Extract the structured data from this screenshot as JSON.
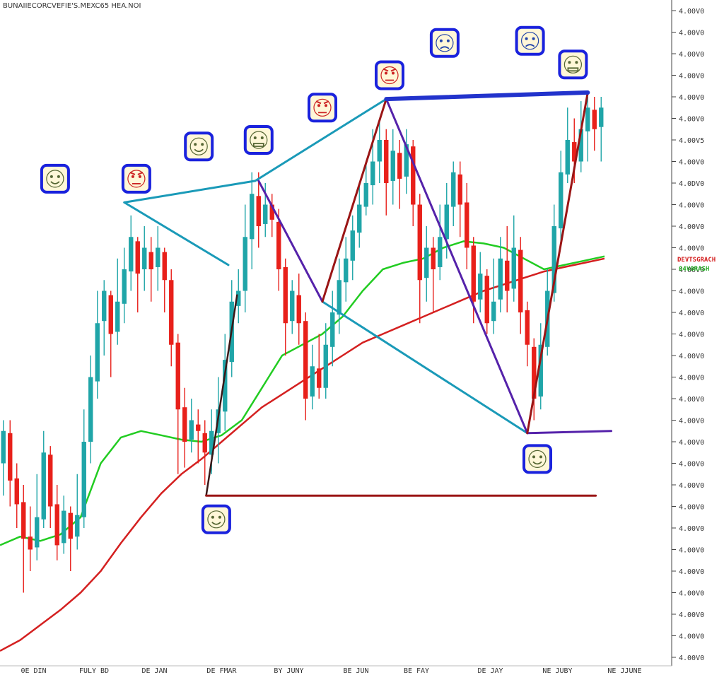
{
  "chart_data": {
    "type": "line",
    "subtype": "candlestick",
    "title": "BUNAIIECORCVEFIE'S.MEXC65 HEA.NOI",
    "xlabel": "",
    "ylabel": "",
    "x_ticks": [
      "0E DIN",
      "FULY BD",
      "DE JAN",
      "DE FMAR",
      "BY JUNY",
      "BE JUN",
      "BE FAY",
      "DE JAY",
      "NE JUBY",
      "NE JJUNE"
    ],
    "y_ticks": [
      "4.00V0",
      "4.00V0",
      "4.00V0",
      "4.00V0",
      "4.00V0",
      "4.00V0",
      "4.00V5",
      "4.00V0",
      "4.0DV0",
      "4.00V0",
      "4.00V0",
      "4.00V0",
      "4.00V0",
      "4.00V0",
      "4.00V0",
      "4.00V0",
      "4.00V0",
      "4.00V0",
      "4.00V0",
      "4.00V0",
      "4.00V0",
      "4.00V0",
      "4.00V0",
      "4.00V0",
      "4.00V0",
      "4.00V0",
      "4.00V0",
      "4.00V0",
      "4.00V0",
      "4.00V0",
      "4.00V0"
    ],
    "ylim": [
      0,
      30
    ],
    "xlim": [
      0,
      100
    ],
    "grid": false,
    "price_tags": [
      "DEVTSGRACH",
      "04V0RASH"
    ],
    "colors": {
      "up": "#1fa5a8",
      "down": "#e8201a",
      "ma_fast": "#22cc22",
      "ma_slow": "#d42020",
      "pattern_cyan": "#1a9ab8",
      "pattern_purple": "#5522aa",
      "pattern_darkred": "#9a1515",
      "pattern_blue": "#2233cc",
      "icon_border": "#1a22dd",
      "icon_fill": "#fff7d8"
    },
    "candles": [
      {
        "x": 0.5,
        "open": 9.0,
        "close": 10.5,
        "high": 11.0,
        "low": 7.5
      },
      {
        "x": 1.5,
        "open": 10.4,
        "close": 8.2,
        "high": 11.0,
        "low": 7.0
      },
      {
        "x": 2.5,
        "open": 8.3,
        "close": 7.1,
        "high": 9.0,
        "low": 6.0
      },
      {
        "x": 3.5,
        "open": 7.2,
        "close": 5.5,
        "high": 8.0,
        "low": 3.0
      },
      {
        "x": 4.5,
        "open": 5.6,
        "close": 5.0,
        "high": 7.0,
        "low": 4.0
      },
      {
        "x": 5.5,
        "open": 5.1,
        "close": 6.5,
        "high": 8.5,
        "low": 4.5
      },
      {
        "x": 6.5,
        "open": 6.4,
        "close": 9.5,
        "high": 10.5,
        "low": 6.0
      },
      {
        "x": 7.5,
        "open": 9.4,
        "close": 7.0,
        "high": 9.8,
        "low": 6.0
      },
      {
        "x": 8.5,
        "open": 7.1,
        "close": 5.2,
        "high": 8.0,
        "low": 4.5
      },
      {
        "x": 9.5,
        "open": 5.3,
        "close": 6.8,
        "high": 7.5,
        "low": 4.8
      },
      {
        "x": 10.5,
        "open": 6.7,
        "close": 5.5,
        "high": 7.0,
        "low": 4.0
      },
      {
        "x": 11.5,
        "open": 5.6,
        "close": 6.6,
        "high": 8.5,
        "low": 5.0
      },
      {
        "x": 12.5,
        "open": 6.5,
        "close": 10.0,
        "high": 11.5,
        "low": 6.0
      },
      {
        "x": 13.5,
        "open": 10.0,
        "close": 13.0,
        "high": 14.0,
        "low": 9.0
      },
      {
        "x": 14.5,
        "open": 12.8,
        "close": 15.5,
        "high": 17.0,
        "low": 12.0
      },
      {
        "x": 15.5,
        "open": 15.6,
        "close": 17.0,
        "high": 17.5,
        "low": 14.0
      },
      {
        "x": 16.5,
        "open": 16.8,
        "close": 15.0,
        "high": 17.0,
        "low": 13.0
      },
      {
        "x": 17.5,
        "open": 15.1,
        "close": 16.5,
        "high": 18.5,
        "low": 14.5
      },
      {
        "x": 18.5,
        "open": 16.4,
        "close": 18.0,
        "high": 19.0,
        "low": 15.5
      },
      {
        "x": 19.5,
        "open": 17.9,
        "close": 19.5,
        "high": 20.5,
        "low": 17.0
      },
      {
        "x": 20.5,
        "open": 19.3,
        "close": 17.8,
        "high": 19.5,
        "low": 16.0
      },
      {
        "x": 21.5,
        "open": 18.0,
        "close": 19.0,
        "high": 20.0,
        "low": 17.0
      },
      {
        "x": 22.5,
        "open": 18.8,
        "close": 18.0,
        "high": 19.5,
        "low": 16.5
      },
      {
        "x": 23.5,
        "open": 18.1,
        "close": 19.0,
        "high": 20.0,
        "low": 17.0
      },
      {
        "x": 24.5,
        "open": 18.8,
        "close": 17.5,
        "high": 19.0,
        "low": 16.0
      },
      {
        "x": 25.5,
        "open": 17.5,
        "close": 14.5,
        "high": 18.0,
        "low": 13.5
      },
      {
        "x": 26.5,
        "open": 14.6,
        "close": 11.5,
        "high": 15.0,
        "low": 8.5
      },
      {
        "x": 27.5,
        "open": 11.6,
        "close": 10.0,
        "high": 12.5,
        "low": 8.8
      },
      {
        "x": 28.5,
        "open": 10.1,
        "close": 11.0,
        "high": 12.0,
        "low": 9.5
      },
      {
        "x": 29.5,
        "open": 10.8,
        "close": 10.5,
        "high": 11.5,
        "low": 9.0
      },
      {
        "x": 30.5,
        "open": 10.4,
        "close": 9.5,
        "high": 11.0,
        "low": 8.0
      },
      {
        "x": 31.5,
        "open": 9.4,
        "close": 10.5,
        "high": 11.5,
        "low": 8.5
      },
      {
        "x": 32.5,
        "open": 10.4,
        "close": 11.5,
        "high": 13.0,
        "low": 9.0
      },
      {
        "x": 33.5,
        "open": 11.4,
        "close": 13.8,
        "high": 15.0,
        "low": 10.5
      },
      {
        "x": 34.5,
        "open": 13.7,
        "close": 16.5,
        "high": 17.5,
        "low": 13.0
      },
      {
        "x": 35.5,
        "open": 16.3,
        "close": 17.0,
        "high": 18.0,
        "low": 15.5
      },
      {
        "x": 36.5,
        "open": 17.0,
        "close": 19.5,
        "high": 21.0,
        "low": 16.0
      },
      {
        "x": 37.5,
        "open": 19.4,
        "close": 21.5,
        "high": 22.5,
        "low": 18.0
      },
      {
        "x": 38.5,
        "open": 21.4,
        "close": 20.0,
        "high": 22.5,
        "low": 19.0
      },
      {
        "x": 39.5,
        "open": 20.1,
        "close": 21.0,
        "high": 22.0,
        "low": 19.5
      },
      {
        "x": 40.5,
        "open": 21.0,
        "close": 20.3,
        "high": 21.5,
        "low": 19.5
      },
      {
        "x": 41.5,
        "open": 20.2,
        "close": 18.0,
        "high": 20.8,
        "low": 17.0
      },
      {
        "x": 42.5,
        "open": 18.1,
        "close": 15.5,
        "high": 18.5,
        "low": 14.0
      },
      {
        "x": 43.5,
        "open": 15.6,
        "close": 17.0,
        "high": 17.5,
        "low": 15.0
      },
      {
        "x": 44.5,
        "open": 16.8,
        "close": 15.5,
        "high": 17.8,
        "low": 14.5
      },
      {
        "x": 45.5,
        "open": 15.6,
        "close": 12.0,
        "high": 16.0,
        "low": 11.0
      },
      {
        "x": 46.5,
        "open": 12.1,
        "close": 13.5,
        "high": 14.5,
        "low": 11.5
      },
      {
        "x": 47.5,
        "open": 13.4,
        "close": 12.5,
        "high": 15.0,
        "low": 12.0
      },
      {
        "x": 48.5,
        "open": 12.5,
        "close": 14.5,
        "high": 15.5,
        "low": 12.0
      },
      {
        "x": 49.5,
        "open": 14.4,
        "close": 16.0,
        "high": 17.0,
        "low": 13.5
      },
      {
        "x": 50.5,
        "open": 15.9,
        "close": 17.5,
        "high": 18.5,
        "low": 15.0
      },
      {
        "x": 51.5,
        "open": 17.4,
        "close": 18.5,
        "high": 19.5,
        "low": 16.5
      },
      {
        "x": 52.5,
        "open": 18.4,
        "close": 19.8,
        "high": 20.5,
        "low": 17.5
      },
      {
        "x": 53.5,
        "open": 19.7,
        "close": 21.0,
        "high": 22.0,
        "low": 19.0
      },
      {
        "x": 54.5,
        "open": 20.9,
        "close": 22.0,
        "high": 23.0,
        "low": 20.5
      },
      {
        "x": 55.5,
        "open": 21.9,
        "close": 23.0,
        "high": 24.5,
        "low": 21.0
      },
      {
        "x": 56.5,
        "open": 23.0,
        "close": 24.0,
        "high": 25.0,
        "low": 22.0
      },
      {
        "x": 57.5,
        "open": 24.0,
        "close": 22.0,
        "high": 24.5,
        "low": 20.5
      },
      {
        "x": 58.5,
        "open": 22.1,
        "close": 23.5,
        "high": 24.5,
        "low": 21.0
      },
      {
        "x": 59.5,
        "open": 23.4,
        "close": 22.2,
        "high": 24.0,
        "low": 20.8
      },
      {
        "x": 60.5,
        "open": 22.3,
        "close": 23.8,
        "high": 24.5,
        "low": 21.5
      },
      {
        "x": 61.5,
        "open": 23.7,
        "close": 21.0,
        "high": 24.0,
        "low": 20.0
      },
      {
        "x": 62.5,
        "open": 21.0,
        "close": 17.5,
        "high": 21.5,
        "low": 15.5
      },
      {
        "x": 63.5,
        "open": 17.6,
        "close": 19.0,
        "high": 20.0,
        "low": 16.5
      },
      {
        "x": 64.5,
        "open": 19.0,
        "close": 18.0,
        "high": 19.5,
        "low": 16.0
      },
      {
        "x": 65.5,
        "open": 18.1,
        "close": 19.5,
        "high": 21.0,
        "low": 17.5
      },
      {
        "x": 66.5,
        "open": 19.4,
        "close": 21.0,
        "high": 22.0,
        "low": 18.5
      },
      {
        "x": 67.5,
        "open": 20.9,
        "close": 22.5,
        "high": 23.0,
        "low": 20.0
      },
      {
        "x": 68.5,
        "open": 22.4,
        "close": 21.0,
        "high": 23.0,
        "low": 19.5
      },
      {
        "x": 69.5,
        "open": 21.1,
        "close": 19.0,
        "high": 22.0,
        "low": 18.0
      },
      {
        "x": 70.5,
        "open": 19.1,
        "close": 16.5,
        "high": 19.5,
        "low": 15.5
      },
      {
        "x": 71.5,
        "open": 16.6,
        "close": 17.8,
        "high": 18.8,
        "low": 16.0
      },
      {
        "x": 72.5,
        "open": 17.7,
        "close": 15.5,
        "high": 18.0,
        "low": 15.0
      },
      {
        "x": 73.5,
        "open": 15.6,
        "close": 16.5,
        "high": 18.5,
        "low": 15.0
      },
      {
        "x": 74.5,
        "open": 16.6,
        "close": 18.5,
        "high": 19.5,
        "low": 16.0
      },
      {
        "x": 75.5,
        "open": 18.4,
        "close": 17.0,
        "high": 20.0,
        "low": 16.0
      },
      {
        "x": 76.5,
        "open": 17.1,
        "close": 19.0,
        "high": 20.5,
        "low": 16.5
      },
      {
        "x": 77.5,
        "open": 18.9,
        "close": 16.0,
        "high": 19.5,
        "low": 15.0
      },
      {
        "x": 78.5,
        "open": 16.1,
        "close": 14.5,
        "high": 16.5,
        "low": 13.5
      },
      {
        "x": 79.5,
        "open": 14.4,
        "close": 12.0,
        "high": 14.8,
        "low": 11.0
      },
      {
        "x": 80.5,
        "open": 12.1,
        "close": 14.5,
        "high": 15.5,
        "low": 11.5
      },
      {
        "x": 81.5,
        "open": 14.4,
        "close": 17.0,
        "high": 18.0,
        "low": 14.0
      },
      {
        "x": 82.5,
        "open": 16.9,
        "close": 20.0,
        "high": 21.0,
        "low": 16.5
      },
      {
        "x": 83.5,
        "open": 19.9,
        "close": 22.5,
        "high": 23.5,
        "low": 19.0
      },
      {
        "x": 84.5,
        "open": 22.4,
        "close": 24.0,
        "high": 25.5,
        "low": 22.0
      },
      {
        "x": 85.5,
        "open": 23.9,
        "close": 23.0,
        "high": 25.0,
        "low": 22.0
      },
      {
        "x": 86.5,
        "open": 23.0,
        "close": 24.5,
        "high": 25.8,
        "low": 22.5
      },
      {
        "x": 87.5,
        "open": 24.4,
        "close": 25.5,
        "high": 26.0,
        "low": 23.0
      },
      {
        "x": 88.5,
        "open": 25.4,
        "close": 24.5,
        "high": 26.0,
        "low": 23.5
      },
      {
        "x": 89.5,
        "open": 24.6,
        "close": 25.5,
        "high": 26.0,
        "low": 23.0
      }
    ],
    "series": [
      {
        "color": "#22cc22",
        "x": [
          0,
          3,
          6,
          9,
          12,
          15,
          18,
          21,
          24,
          27,
          30,
          33,
          36,
          39,
          42,
          45,
          48,
          51,
          54,
          57,
          60,
          63,
          66,
          69,
          72,
          75,
          78,
          81,
          84,
          87,
          90
        ],
        "y": [
          5.2,
          5.6,
          5.4,
          5.7,
          6.5,
          9.0,
          10.2,
          10.5,
          10.3,
          10.1,
          10.0,
          10.3,
          11.0,
          12.5,
          14.0,
          14.5,
          15.0,
          15.8,
          17.0,
          18.0,
          18.3,
          18.5,
          19.0,
          19.3,
          19.2,
          19.0,
          18.5,
          18.0,
          18.2,
          18.4,
          18.6
        ]
      },
      {
        "color": "#d42020",
        "x": [
          0,
          3,
          6,
          9,
          12,
          15,
          18,
          21,
          24,
          27,
          30,
          33,
          36,
          39,
          42,
          45,
          48,
          51,
          54,
          57,
          60,
          63,
          66,
          69,
          72,
          75,
          78,
          81,
          84,
          87,
          90
        ],
        "y": [
          0.3,
          0.8,
          1.5,
          2.2,
          3.0,
          4.0,
          5.3,
          6.5,
          7.6,
          8.5,
          9.2,
          10.0,
          10.8,
          11.6,
          12.2,
          12.8,
          13.4,
          14.0,
          14.6,
          15.0,
          15.4,
          15.8,
          16.2,
          16.6,
          17.0,
          17.3,
          17.6,
          17.9,
          18.1,
          18.3,
          18.5
        ]
      }
    ],
    "pattern_lines": [
      {
        "color": "#1a9ab8",
        "width": 3,
        "points": [
          [
            18.5,
            21.1
          ],
          [
            34.0,
            18.2
          ]
        ]
      },
      {
        "color": "#1a9ab8",
        "width": 3,
        "points": [
          [
            18.5,
            21.1
          ],
          [
            38.0,
            22.1
          ],
          [
            57.5,
            25.9
          ]
        ]
      },
      {
        "color": "#1a9ab8",
        "width": 3,
        "points": [
          [
            48.0,
            16.5
          ],
          [
            78.5,
            10.4
          ]
        ]
      },
      {
        "color": "#5522aa",
        "width": 3,
        "points": [
          [
            38.5,
            22.1
          ],
          [
            48.0,
            16.5
          ]
        ]
      },
      {
        "color": "#5522aa",
        "width": 3,
        "points": [
          [
            57.5,
            25.9
          ],
          [
            78.5,
            10.4
          ]
        ]
      },
      {
        "color": "#5522aa",
        "width": 3,
        "points": [
          [
            78.5,
            10.4
          ],
          [
            91.0,
            10.5
          ]
        ]
      },
      {
        "color": "#9a1515",
        "width": 3,
        "points": [
          [
            48.0,
            16.5
          ],
          [
            57.5,
            25.9
          ]
        ]
      },
      {
        "color": "#9a1515",
        "width": 3,
        "points": [
          [
            78.5,
            10.4
          ],
          [
            87.5,
            26.2
          ]
        ]
      },
      {
        "color": "#3a1818",
        "width": 2.5,
        "points": [
          [
            30.7,
            7.5
          ],
          [
            35.3,
            16.8
          ]
        ]
      },
      {
        "color": "#9a1515",
        "width": 3,
        "points": [
          [
            30.7,
            7.5
          ],
          [
            88.7,
            7.5
          ]
        ]
      },
      {
        "color": "#2233cc",
        "width": 6,
        "points": [
          [
            57.5,
            25.9
          ],
          [
            87.5,
            26.2
          ]
        ]
      }
    ],
    "icons": [
      {
        "x": 8.2,
        "y": 22.2,
        "face": "smile"
      },
      {
        "x": 20.3,
        "y": 22.2,
        "face": "angry"
      },
      {
        "x": 29.6,
        "y": 23.7,
        "face": "grin"
      },
      {
        "x": 38.5,
        "y": 24.0,
        "face": "grimace"
      },
      {
        "x": 48.0,
        "y": 25.5,
        "face": "angry"
      },
      {
        "x": 58.0,
        "y": 27.0,
        "face": "angry"
      },
      {
        "x": 66.2,
        "y": 28.5,
        "face": "sad"
      },
      {
        "x": 78.9,
        "y": 28.6,
        "face": "sad"
      },
      {
        "x": 85.3,
        "y": 27.5,
        "face": "grimace"
      },
      {
        "x": 80.0,
        "y": 9.2,
        "face": "grin"
      },
      {
        "x": 32.2,
        "y": 6.4,
        "face": "grin"
      }
    ]
  }
}
